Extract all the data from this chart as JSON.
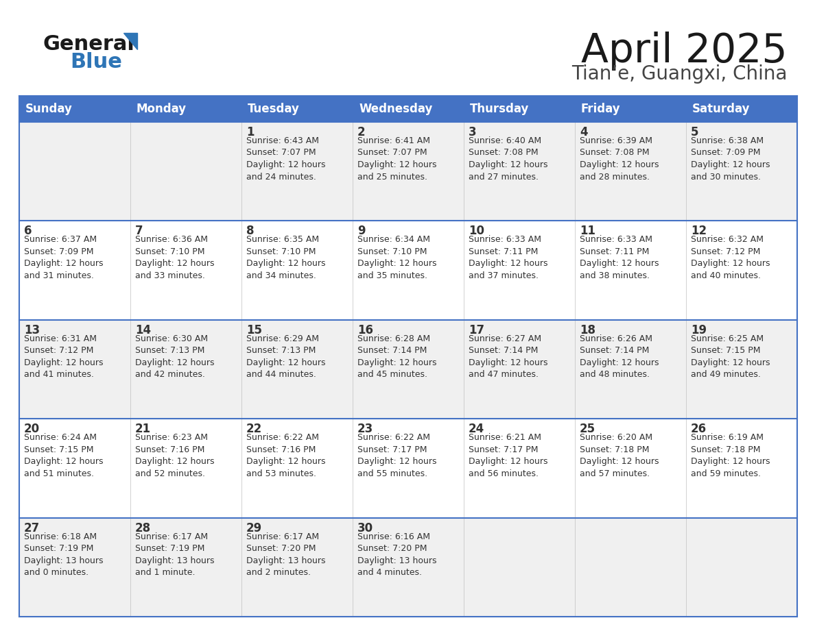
{
  "title": "April 2025",
  "subtitle": "Tian’e, Guangxi, China",
  "header_color": "#4472C4",
  "header_text_color": "#FFFFFF",
  "days_of_week": [
    "Sunday",
    "Monday",
    "Tuesday",
    "Wednesday",
    "Thursday",
    "Friday",
    "Saturday"
  ],
  "cell_bg_even": "#F0F0F0",
  "cell_bg_odd": "#FFFFFF",
  "cell_border_color": "#4472C4",
  "sep_line_color": "#4472C4",
  "text_color": "#333333",
  "calendar_data": [
    [
      {
        "day": "",
        "info": ""
      },
      {
        "day": "",
        "info": ""
      },
      {
        "day": "1",
        "info": "Sunrise: 6:43 AM\nSunset: 7:07 PM\nDaylight: 12 hours\nand 24 minutes."
      },
      {
        "day": "2",
        "info": "Sunrise: 6:41 AM\nSunset: 7:07 PM\nDaylight: 12 hours\nand 25 minutes."
      },
      {
        "day": "3",
        "info": "Sunrise: 6:40 AM\nSunset: 7:08 PM\nDaylight: 12 hours\nand 27 minutes."
      },
      {
        "day": "4",
        "info": "Sunrise: 6:39 AM\nSunset: 7:08 PM\nDaylight: 12 hours\nand 28 minutes."
      },
      {
        "day": "5",
        "info": "Sunrise: 6:38 AM\nSunset: 7:09 PM\nDaylight: 12 hours\nand 30 minutes."
      }
    ],
    [
      {
        "day": "6",
        "info": "Sunrise: 6:37 AM\nSunset: 7:09 PM\nDaylight: 12 hours\nand 31 minutes."
      },
      {
        "day": "7",
        "info": "Sunrise: 6:36 AM\nSunset: 7:10 PM\nDaylight: 12 hours\nand 33 minutes."
      },
      {
        "day": "8",
        "info": "Sunrise: 6:35 AM\nSunset: 7:10 PM\nDaylight: 12 hours\nand 34 minutes."
      },
      {
        "day": "9",
        "info": "Sunrise: 6:34 AM\nSunset: 7:10 PM\nDaylight: 12 hours\nand 35 minutes."
      },
      {
        "day": "10",
        "info": "Sunrise: 6:33 AM\nSunset: 7:11 PM\nDaylight: 12 hours\nand 37 minutes."
      },
      {
        "day": "11",
        "info": "Sunrise: 6:33 AM\nSunset: 7:11 PM\nDaylight: 12 hours\nand 38 minutes."
      },
      {
        "day": "12",
        "info": "Sunrise: 6:32 AM\nSunset: 7:12 PM\nDaylight: 12 hours\nand 40 minutes."
      }
    ],
    [
      {
        "day": "13",
        "info": "Sunrise: 6:31 AM\nSunset: 7:12 PM\nDaylight: 12 hours\nand 41 minutes."
      },
      {
        "day": "14",
        "info": "Sunrise: 6:30 AM\nSunset: 7:13 PM\nDaylight: 12 hours\nand 42 minutes."
      },
      {
        "day": "15",
        "info": "Sunrise: 6:29 AM\nSunset: 7:13 PM\nDaylight: 12 hours\nand 44 minutes."
      },
      {
        "day": "16",
        "info": "Sunrise: 6:28 AM\nSunset: 7:14 PM\nDaylight: 12 hours\nand 45 minutes."
      },
      {
        "day": "17",
        "info": "Sunrise: 6:27 AM\nSunset: 7:14 PM\nDaylight: 12 hours\nand 47 minutes."
      },
      {
        "day": "18",
        "info": "Sunrise: 6:26 AM\nSunset: 7:14 PM\nDaylight: 12 hours\nand 48 minutes."
      },
      {
        "day": "19",
        "info": "Sunrise: 6:25 AM\nSunset: 7:15 PM\nDaylight: 12 hours\nand 49 minutes."
      }
    ],
    [
      {
        "day": "20",
        "info": "Sunrise: 6:24 AM\nSunset: 7:15 PM\nDaylight: 12 hours\nand 51 minutes."
      },
      {
        "day": "21",
        "info": "Sunrise: 6:23 AM\nSunset: 7:16 PM\nDaylight: 12 hours\nand 52 minutes."
      },
      {
        "day": "22",
        "info": "Sunrise: 6:22 AM\nSunset: 7:16 PM\nDaylight: 12 hours\nand 53 minutes."
      },
      {
        "day": "23",
        "info": "Sunrise: 6:22 AM\nSunset: 7:17 PM\nDaylight: 12 hours\nand 55 minutes."
      },
      {
        "day": "24",
        "info": "Sunrise: 6:21 AM\nSunset: 7:17 PM\nDaylight: 12 hours\nand 56 minutes."
      },
      {
        "day": "25",
        "info": "Sunrise: 6:20 AM\nSunset: 7:18 PM\nDaylight: 12 hours\nand 57 minutes."
      },
      {
        "day": "26",
        "info": "Sunrise: 6:19 AM\nSunset: 7:18 PM\nDaylight: 12 hours\nand 59 minutes."
      }
    ],
    [
      {
        "day": "27",
        "info": "Sunrise: 6:18 AM\nSunset: 7:19 PM\nDaylight: 13 hours\nand 0 minutes."
      },
      {
        "day": "28",
        "info": "Sunrise: 6:17 AM\nSunset: 7:19 PM\nDaylight: 13 hours\nand 1 minute."
      },
      {
        "day": "29",
        "info": "Sunrise: 6:17 AM\nSunset: 7:20 PM\nDaylight: 13 hours\nand 2 minutes."
      },
      {
        "day": "30",
        "info": "Sunrise: 6:16 AM\nSunset: 7:20 PM\nDaylight: 13 hours\nand 4 minutes."
      },
      {
        "day": "",
        "info": ""
      },
      {
        "day": "",
        "info": ""
      },
      {
        "day": "",
        "info": ""
      }
    ]
  ],
  "logo_color_general": "#1a1a1a",
  "logo_color_blue": "#2E75B6",
  "title_fontsize": 42,
  "subtitle_fontsize": 20,
  "header_fontsize": 12,
  "day_num_fontsize": 12,
  "info_fontsize": 9
}
